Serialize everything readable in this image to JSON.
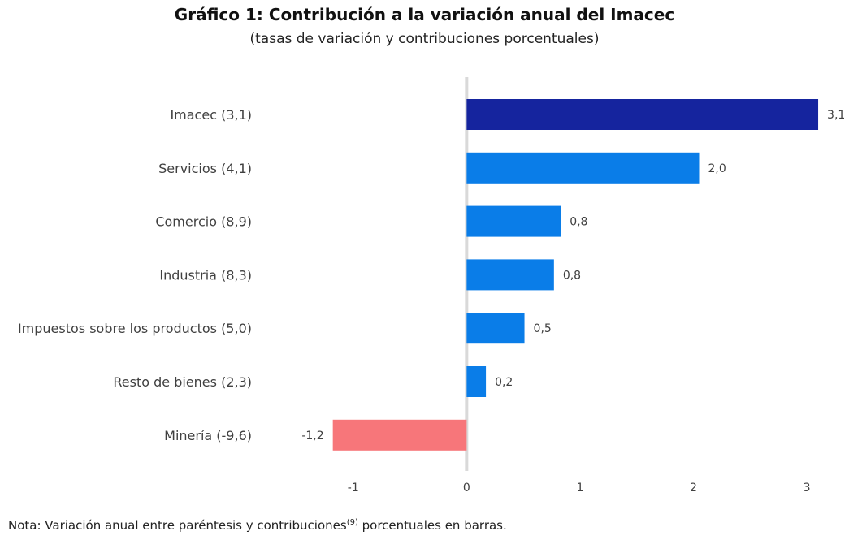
{
  "title": "Gráfico 1: Contribución a la variación anual del Imacec",
  "subtitle": "(tasas de variación y contribuciones porcentuales)",
  "note": {
    "prefix": "Nota: Variación anual entre paréntesis y contribuciones",
    "sup": "(9)",
    "suffix": " porcentuales en barras."
  },
  "colors": {
    "imacec": "#15249E",
    "positive": "#0A7DE8",
    "negative": "#F7767A",
    "zero_line": "#D9D9D9",
    "text": "#404040"
  },
  "chart_data": {
    "type": "bar",
    "orientation": "horizontal",
    "categories": [
      "Imacec (3,1)",
      "Servicios (4,1)",
      "Comercio (8,9)",
      "Industria (8,3)",
      "Impuestos sobre los productos (5,0)",
      "Resto de bienes (2,3)",
      "Minería (-9,6)"
    ],
    "values": [
      3.1,
      2.05,
      0.83,
      0.77,
      0.51,
      0.17,
      -1.18
    ],
    "data_labels": [
      "3,1",
      "2,0",
      "0,8",
      "0,8",
      "0,5",
      "0,2",
      "-1,2"
    ],
    "x_ticks": [
      -1,
      0,
      1,
      2,
      3
    ],
    "x_tick_labels": [
      "-1",
      "0",
      "1",
      "2",
      "3"
    ],
    "xlim": [
      -1.98,
      3.2
    ],
    "grid": false,
    "legend": "none"
  }
}
